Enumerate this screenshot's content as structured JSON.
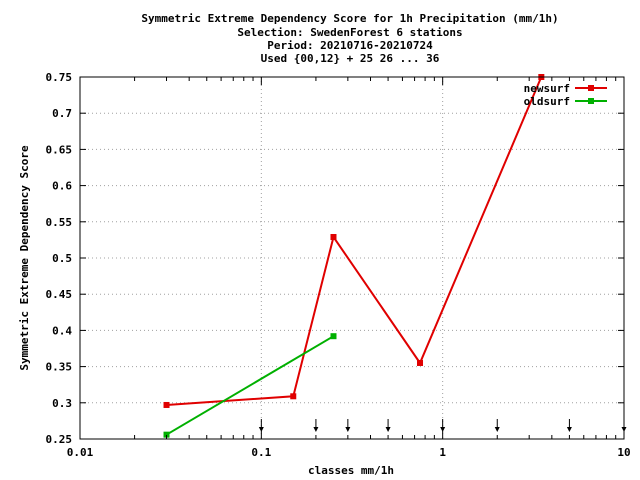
{
  "chart_data": {
    "type": "line",
    "title_lines": [
      "Symmetric Extreme Dependency Score  for 1h Precipitation (mm/1h)",
      "Selection: SwedenForest      6 stations",
      "Period: 20210716-20210724",
      "Used {00,12} + 25 26 ... 36"
    ],
    "xlabel": "classes mm/1h",
    "ylabel": "Symmetric Extreme Dependency Score",
    "x_scale": "log",
    "xlim": [
      0.01,
      10
    ],
    "ylim": [
      0.25,
      0.75
    ],
    "x_ticks": [
      {
        "value": 0.01,
        "label": "0.01"
      },
      {
        "value": 0.1,
        "label": "0.1"
      },
      {
        "value": 1,
        "label": "1"
      },
      {
        "value": 10,
        "label": "10"
      }
    ],
    "y_ticks": [
      {
        "value": 0.25,
        "label": "0.25"
      },
      {
        "value": 0.3,
        "label": "0.3"
      },
      {
        "value": 0.35,
        "label": "0.35"
      },
      {
        "value": 0.4,
        "label": "0.4"
      },
      {
        "value": 0.45,
        "label": "0.45"
      },
      {
        "value": 0.5,
        "label": "0.5"
      },
      {
        "value": 0.55,
        "label": "0.55"
      },
      {
        "value": 0.6,
        "label": "0.6"
      },
      {
        "value": 0.65,
        "label": "0.65"
      },
      {
        "value": 0.7,
        "label": "0.7"
      },
      {
        "value": 0.75,
        "label": "0.75"
      }
    ],
    "grid": true,
    "legend_position": "top-right",
    "class_markers": [
      0.1,
      0.2,
      0.3,
      0.5,
      1,
      2,
      5,
      10
    ],
    "series": [
      {
        "name": "newsurf",
        "color": "#e00000",
        "points": [
          {
            "x": 0.03,
            "y": 0.297
          },
          {
            "x": 0.15,
            "y": 0.309
          },
          {
            "x": 0.25,
            "y": 0.529
          },
          {
            "x": 0.75,
            "y": 0.355
          },
          {
            "x": 3.5,
            "y": 0.75
          }
        ]
      },
      {
        "name": "oldsurf",
        "color": "#00b000",
        "points": [
          {
            "x": 0.03,
            "y": 0.256
          },
          {
            "x": 0.25,
            "y": 0.392
          }
        ]
      }
    ]
  }
}
